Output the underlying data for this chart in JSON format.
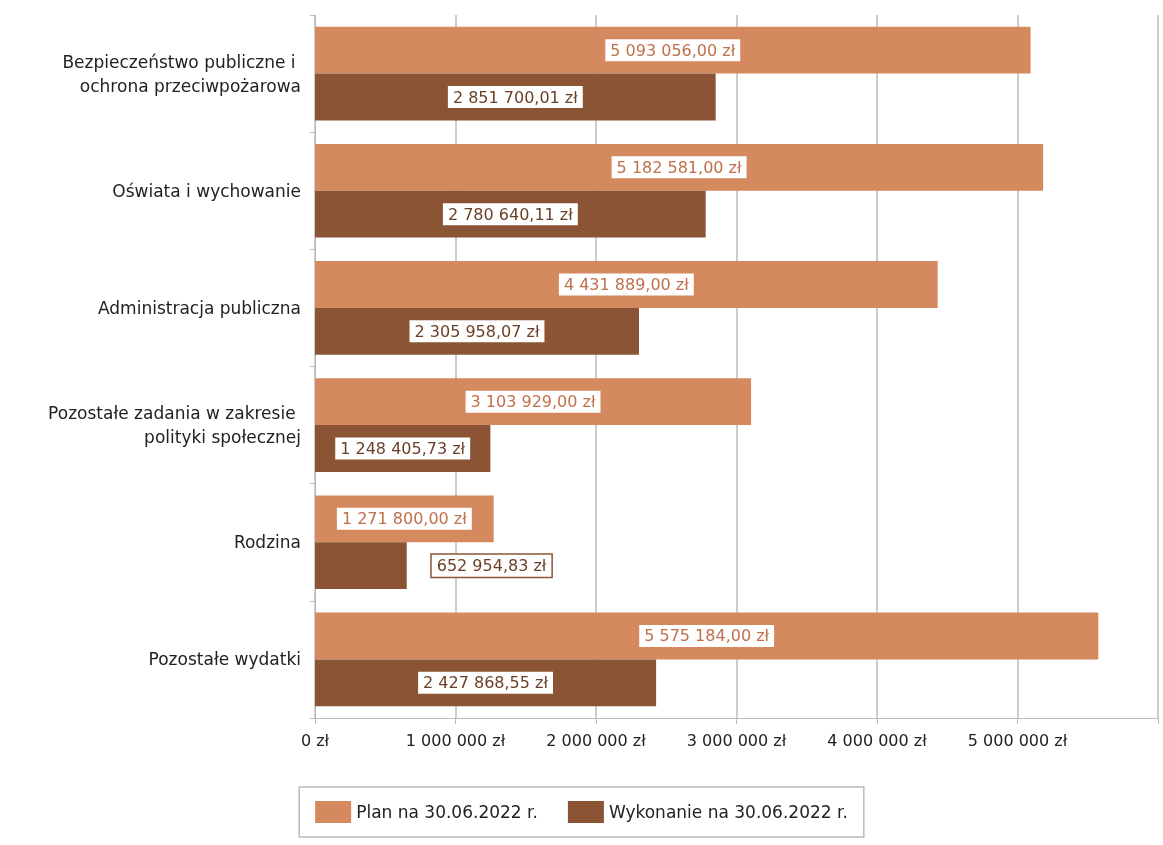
{
  "chart_data": {
    "type": "bar",
    "orientation": "horizontal",
    "categories": [
      "Bezpieczeństwo publiczne i ochrona przeciwpożarowa",
      "Oświata i wychowanie",
      "Administracja publiczna",
      "Pozostałe zadania w zakresie polityki społecznej",
      "Rodzina",
      "Pozostałe wydatki"
    ],
    "series": [
      {
        "name": "Plan na 30.06.2022 r.",
        "color": "#d4895e",
        "values": [
          5093056.0,
          5182581.0,
          4431889.0,
          3103929.0,
          1271800.0,
          5575184.0
        ],
        "value_labels": [
          "5 093 056,00 zł",
          "5 182 581,00 zł",
          "4 431 889,00 zł",
          "3 103 929,00 zł",
          "1 271 800,00 zł",
          "5 575 184,00 zł"
        ]
      },
      {
        "name": "Wykonanie na 30.06.2022 r.",
        "color": "#8b5535",
        "values": [
          2851700.01,
          2780640.11,
          2305958.07,
          1248405.73,
          652954.83,
          2427868.55
        ],
        "value_labels": [
          "2 851 700,01 zł",
          "2 780 640,11 zł",
          "2 305 958,07 zł",
          "1 248 405,73 zł",
          "652 954,83 zł",
          "2 427 868,55 zł"
        ]
      }
    ],
    "xlim": [
      0,
      6000000
    ],
    "xticks": [
      {
        "value": 0,
        "label": "0 zł"
      },
      {
        "value": 1000000,
        "label": "1 000 000 zł"
      },
      {
        "value": 2000000,
        "label": "2 000 000 zł"
      },
      {
        "value": 3000000,
        "label": "3 000 000 zł"
      },
      {
        "value": 4000000,
        "label": "4 000 000 zł"
      },
      {
        "value": 5000000,
        "label": "5 000 000 zł"
      },
      {
        "value": 6000000,
        "label": null
      }
    ],
    "grid": "x",
    "legend": "bottom"
  }
}
